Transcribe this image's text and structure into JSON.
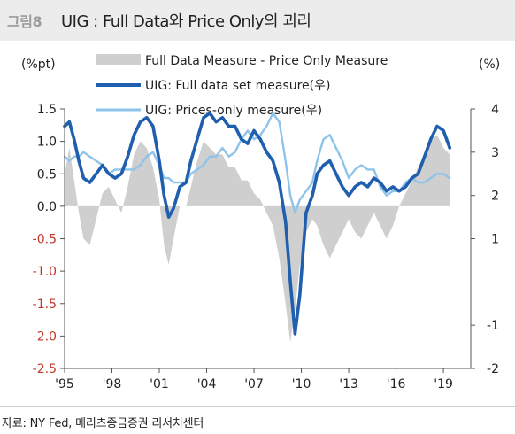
{
  "figure": {
    "label": "그림8",
    "title": "UIG : Full Data와 Price Only의 괴리",
    "source": "자료: NY Fed, 메리츠종금증권 리서치센터"
  },
  "colors": {
    "bar": "#cfcfcf",
    "full": "#1f5fad",
    "price": "#8ec3ea",
    "left_axis_text": "#222222",
    "negative_text": "#c0392b"
  },
  "chart_data": {
    "type": "line",
    "left_axis_unit": "(%pt)",
    "right_axis_unit": "(%)",
    "x_range": [
      1995.0,
      2019.5
    ],
    "y_left_range": [
      -2.5,
      1.5
    ],
    "y_right_range": [
      -2,
      4
    ],
    "y_left_ticks": [
      "1.5",
      "1.0",
      "0.5",
      "0.0",
      "-0.5",
      "-1.0",
      "-1.5",
      "-2.0",
      "-2.5"
    ],
    "y_right_ticks": [
      "4",
      "3",
      "2",
      "1",
      "-1",
      "-2"
    ],
    "x_ticks": [
      {
        "label": "'95",
        "x": 1995
      },
      {
        "label": "'98",
        "x": 1998
      },
      {
        "label": "'01",
        "x": 2001
      },
      {
        "label": "'04",
        "x": 2004
      },
      {
        "label": "'07",
        "x": 2007
      },
      {
        "label": "'10",
        "x": 2010
      },
      {
        "label": "'13",
        "x": 2013
      },
      {
        "label": "'16",
        "x": 2016
      },
      {
        "label": "'19",
        "x": 2019
      }
    ],
    "legend": [
      {
        "name": "Full Data Measure - Price Only Measure",
        "kind": "area"
      },
      {
        "name": "UIG: Full data set measure(우)",
        "kind": "line"
      },
      {
        "name": "UIG: Prices-only measure(우)",
        "kind": "line"
      }
    ],
    "series": [
      {
        "name": "Full Data Measure - Price Only Measure",
        "axis": "left",
        "type": "area",
        "points": [
          [
            1995.0,
            0.5
          ],
          [
            1995.3,
            0.9
          ],
          [
            1995.6,
            0.4
          ],
          [
            1995.9,
            -0.1
          ],
          [
            1996.2,
            -0.5
          ],
          [
            1996.6,
            -0.6
          ],
          [
            1997.0,
            -0.2
          ],
          [
            1997.4,
            0.2
          ],
          [
            1997.8,
            0.3
          ],
          [
            1998.2,
            0.1
          ],
          [
            1998.6,
            -0.1
          ],
          [
            1999.0,
            0.3
          ],
          [
            1999.4,
            0.8
          ],
          [
            1999.8,
            1.0
          ],
          [
            2000.2,
            0.9
          ],
          [
            2000.6,
            0.6
          ],
          [
            2001.0,
            0.1
          ],
          [
            2001.3,
            -0.6
          ],
          [
            2001.6,
            -0.9
          ],
          [
            2001.9,
            -0.5
          ],
          [
            2002.3,
            0.0
          ],
          [
            2002.7,
            0.0
          ],
          [
            2003.0,
            0.3
          ],
          [
            2003.4,
            0.7
          ],
          [
            2003.8,
            1.0
          ],
          [
            2004.2,
            0.9
          ],
          [
            2004.6,
            0.8
          ],
          [
            2005.0,
            0.8
          ],
          [
            2005.4,
            0.6
          ],
          [
            2005.8,
            0.6
          ],
          [
            2006.2,
            0.4
          ],
          [
            2006.6,
            0.4
          ],
          [
            2007.0,
            0.2
          ],
          [
            2007.4,
            0.1
          ],
          [
            2007.8,
            -0.1
          ],
          [
            2008.2,
            -0.3
          ],
          [
            2008.6,
            -0.8
          ],
          [
            2009.0,
            -1.5
          ],
          [
            2009.3,
            -2.1
          ],
          [
            2009.6,
            -1.6
          ],
          [
            2009.9,
            -0.9
          ],
          [
            2010.3,
            -0.4
          ],
          [
            2010.7,
            -0.2
          ],
          [
            2011.0,
            -0.3
          ],
          [
            2011.4,
            -0.6
          ],
          [
            2011.8,
            -0.8
          ],
          [
            2012.2,
            -0.6
          ],
          [
            2012.6,
            -0.4
          ],
          [
            2013.0,
            -0.2
          ],
          [
            2013.4,
            -0.4
          ],
          [
            2013.8,
            -0.5
          ],
          [
            2014.2,
            -0.3
          ],
          [
            2014.6,
            -0.1
          ],
          [
            2015.0,
            -0.3
          ],
          [
            2015.4,
            -0.5
          ],
          [
            2015.8,
            -0.3
          ],
          [
            2016.2,
            0.0
          ],
          [
            2016.6,
            0.2
          ],
          [
            2017.0,
            0.4
          ],
          [
            2017.4,
            0.6
          ],
          [
            2017.8,
            0.8
          ],
          [
            2018.2,
            1.0
          ],
          [
            2018.6,
            1.1
          ],
          [
            2019.0,
            0.9
          ],
          [
            2019.4,
            0.8
          ]
        ]
      },
      {
        "name": "UIG: Full data set measure(우)",
        "axis": "right",
        "type": "line",
        "points": [
          [
            1995.0,
            3.6
          ],
          [
            1995.3,
            3.7
          ],
          [
            1995.6,
            3.3
          ],
          [
            1995.9,
            2.8
          ],
          [
            1996.2,
            2.4
          ],
          [
            1996.6,
            2.3
          ],
          [
            1997.0,
            2.5
          ],
          [
            1997.4,
            2.7
          ],
          [
            1997.8,
            2.5
          ],
          [
            1998.2,
            2.4
          ],
          [
            1998.6,
            2.5
          ],
          [
            1999.0,
            2.9
          ],
          [
            1999.4,
            3.4
          ],
          [
            1999.8,
            3.7
          ],
          [
            2000.2,
            3.8
          ],
          [
            2000.6,
            3.6
          ],
          [
            2001.0,
            2.8
          ],
          [
            2001.3,
            2.0
          ],
          [
            2001.6,
            1.5
          ],
          [
            2001.9,
            1.7
          ],
          [
            2002.3,
            2.2
          ],
          [
            2002.7,
            2.3
          ],
          [
            2003.0,
            2.8
          ],
          [
            2003.4,
            3.3
          ],
          [
            2003.8,
            3.8
          ],
          [
            2004.2,
            3.9
          ],
          [
            2004.6,
            3.7
          ],
          [
            2005.0,
            3.8
          ],
          [
            2005.4,
            3.6
          ],
          [
            2005.8,
            3.6
          ],
          [
            2006.2,
            3.3
          ],
          [
            2006.6,
            3.2
          ],
          [
            2007.0,
            3.5
          ],
          [
            2007.4,
            3.3
          ],
          [
            2007.8,
            3.0
          ],
          [
            2008.2,
            2.8
          ],
          [
            2008.6,
            2.3
          ],
          [
            2009.0,
            1.4
          ],
          [
            2009.3,
            0.0
          ],
          [
            2009.6,
            -1.2
          ],
          [
            2009.9,
            -0.3
          ],
          [
            2010.3,
            1.6
          ],
          [
            2010.7,
            2.0
          ],
          [
            2011.0,
            2.5
          ],
          [
            2011.4,
            2.7
          ],
          [
            2011.8,
            2.8
          ],
          [
            2012.2,
            2.5
          ],
          [
            2012.6,
            2.2
          ],
          [
            2013.0,
            2.0
          ],
          [
            2013.4,
            2.2
          ],
          [
            2013.8,
            2.3
          ],
          [
            2014.2,
            2.2
          ],
          [
            2014.6,
            2.4
          ],
          [
            2015.0,
            2.3
          ],
          [
            2015.4,
            2.1
          ],
          [
            2015.8,
            2.2
          ],
          [
            2016.2,
            2.1
          ],
          [
            2016.6,
            2.2
          ],
          [
            2017.0,
            2.4
          ],
          [
            2017.4,
            2.5
          ],
          [
            2017.8,
            2.9
          ],
          [
            2018.2,
            3.3
          ],
          [
            2018.6,
            3.6
          ],
          [
            2019.0,
            3.5
          ],
          [
            2019.4,
            3.1
          ]
        ]
      },
      {
        "name": "UIG: Prices-only measure(우)",
        "axis": "right",
        "type": "line",
        "points": [
          [
            1995.0,
            2.9
          ],
          [
            1995.3,
            2.8
          ],
          [
            1995.6,
            2.9
          ],
          [
            1995.9,
            2.9
          ],
          [
            1996.2,
            3.0
          ],
          [
            1996.6,
            2.9
          ],
          [
            1997.0,
            2.8
          ],
          [
            1997.4,
            2.7
          ],
          [
            1997.8,
            2.5
          ],
          [
            1998.2,
            2.6
          ],
          [
            1998.6,
            2.6
          ],
          [
            1999.0,
            2.6
          ],
          [
            1999.4,
            2.6
          ],
          [
            1999.8,
            2.7
          ],
          [
            2000.2,
            2.9
          ],
          [
            2000.6,
            3.0
          ],
          [
            2001.0,
            2.7
          ],
          [
            2001.3,
            2.4
          ],
          [
            2001.6,
            2.4
          ],
          [
            2001.9,
            2.3
          ],
          [
            2002.3,
            2.3
          ],
          [
            2002.7,
            2.3
          ],
          [
            2003.0,
            2.5
          ],
          [
            2003.4,
            2.6
          ],
          [
            2003.8,
            2.7
          ],
          [
            2004.2,
            2.9
          ],
          [
            2004.6,
            2.9
          ],
          [
            2005.0,
            3.1
          ],
          [
            2005.4,
            2.9
          ],
          [
            2005.8,
            3.0
          ],
          [
            2006.2,
            3.3
          ],
          [
            2006.6,
            3.5
          ],
          [
            2007.0,
            3.3
          ],
          [
            2007.4,
            3.4
          ],
          [
            2007.8,
            3.6
          ],
          [
            2008.2,
            3.9
          ],
          [
            2008.6,
            3.7
          ],
          [
            2009.0,
            2.8
          ],
          [
            2009.3,
            2.0
          ],
          [
            2009.6,
            1.6
          ],
          [
            2009.9,
            1.9
          ],
          [
            2010.3,
            2.1
          ],
          [
            2010.7,
            2.3
          ],
          [
            2011.0,
            2.8
          ],
          [
            2011.4,
            3.3
          ],
          [
            2011.8,
            3.4
          ],
          [
            2012.2,
            3.1
          ],
          [
            2012.6,
            2.8
          ],
          [
            2013.0,
            2.4
          ],
          [
            2013.4,
            2.6
          ],
          [
            2013.8,
            2.7
          ],
          [
            2014.2,
            2.6
          ],
          [
            2014.6,
            2.6
          ],
          [
            2015.0,
            2.2
          ],
          [
            2015.4,
            2.0
          ],
          [
            2015.8,
            2.1
          ],
          [
            2016.2,
            2.1
          ],
          [
            2016.6,
            2.3
          ],
          [
            2017.0,
            2.4
          ],
          [
            2017.4,
            2.3
          ],
          [
            2017.8,
            2.3
          ],
          [
            2018.2,
            2.4
          ],
          [
            2018.6,
            2.5
          ],
          [
            2019.0,
            2.5
          ],
          [
            2019.4,
            2.4
          ]
        ]
      }
    ]
  }
}
